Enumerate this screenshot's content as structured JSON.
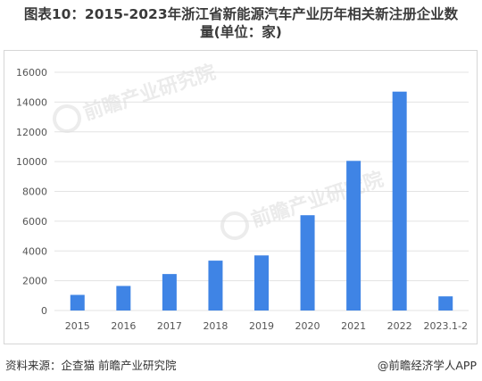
{
  "title": {
    "line1": "图表10：2015-2023年浙江省新能源汽车产业历年相关新注册企业数",
    "line2": "量(单位：家)"
  },
  "footer": {
    "source": "资料来源：企查猫 前瞻产业研究院",
    "brand": "@前瞻经济学人APP"
  },
  "watermark": {
    "text": "前瞻产业研究院"
  },
  "colors": {
    "bar": "#3f84e5",
    "grid": "#e3e3e3",
    "axis_text": "#555555"
  },
  "chart_data": {
    "type": "bar",
    "categories": [
      "2015",
      "2016",
      "2017",
      "2018",
      "2019",
      "2020",
      "2021",
      "2022",
      "2023.1-2"
    ],
    "values": [
      1050,
      1650,
      2450,
      3350,
      3700,
      6400,
      10050,
      14700,
      950
    ],
    "ylim": [
      0,
      16000
    ],
    "yticks": [
      0,
      2000,
      4000,
      6000,
      8000,
      10000,
      12000,
      14000,
      16000
    ],
    "grid": true,
    "legend": "none"
  }
}
